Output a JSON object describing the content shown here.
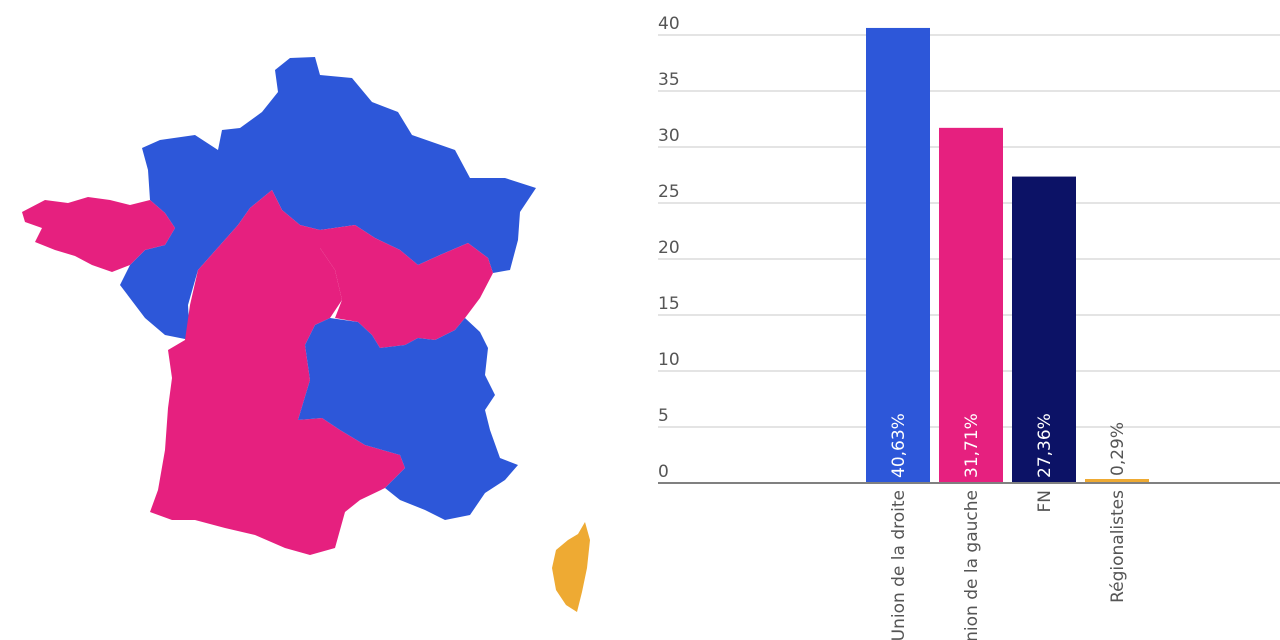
{
  "colors": {
    "union_droite": "#2d57d9",
    "union_gauche": "#e6207f",
    "fn": "#0c1266",
    "regionalistes": "#eeaa33"
  },
  "map": {
    "regions": [
      {
        "id": "north",
        "color": "#2d57d9"
      },
      {
        "id": "bretagne",
        "color": "#e6207f"
      },
      {
        "id": "center-west",
        "color": "#e6207f"
      },
      {
        "id": "bourgogne",
        "color": "#e6207f"
      },
      {
        "id": "auvergne-rhone-paca",
        "color": "#2d57d9"
      },
      {
        "id": "corse",
        "color": "#eeaa33"
      }
    ]
  },
  "chart_data": {
    "type": "bar",
    "orientation": "vertical",
    "categories": [
      "Union de la droite",
      "Union de la gauche",
      "FN",
      "Régionalistes"
    ],
    "values": [
      40.63,
      31.71,
      27.36,
      0.29
    ],
    "value_labels": [
      "40,63%",
      "31,71%",
      "27,36%",
      "0,29%"
    ],
    "colors": [
      "#2d57d9",
      "#e6207f",
      "#0c1266",
      "#eeaa33"
    ],
    "title": "",
    "xlabel": "",
    "ylabel": "",
    "ylim": [
      0,
      40
    ],
    "yticks": [
      0,
      5,
      10,
      15,
      20,
      25,
      30,
      35,
      40
    ],
    "grid": true,
    "legend": "none"
  }
}
